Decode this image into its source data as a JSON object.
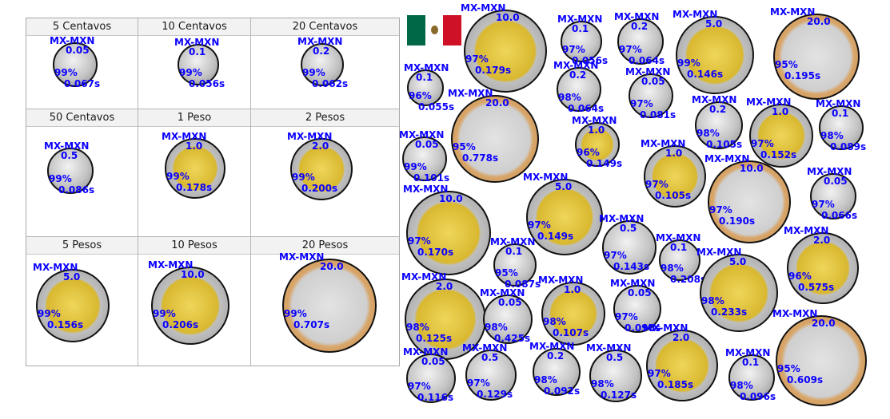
{
  "colors": {
    "label": "#0a00ff",
    "flag_green": "#006847",
    "flag_white": "#ffffff",
    "flag_red": "#ce1126"
  },
  "reference_table": {
    "cells": [
      {
        "header": "5 Centavos",
        "det": {
          "cls": "MX-MXN",
          "val": "0.05",
          "conf": "99%",
          "time": "0.067s"
        }
      },
      {
        "header": "10 Centavos",
        "det": {
          "cls": "MX-MXN",
          "val": "0.1",
          "conf": "99%",
          "time": "0.056s"
        }
      },
      {
        "header": "20 Centavos",
        "det": {
          "cls": "MX-MXN",
          "val": "0.2",
          "conf": "99%",
          "time": "0.062s"
        }
      },
      {
        "header": "50 Centavos",
        "det": {
          "cls": "MX-MXN",
          "val": "0.5",
          "conf": "99%",
          "time": "0.086s"
        }
      },
      {
        "header": "1 Peso",
        "det": {
          "cls": "MX-MXN",
          "val": "1.0",
          "conf": "99%",
          "time": "0.178s"
        }
      },
      {
        "header": "2 Pesos",
        "det": {
          "cls": "MX-MXN",
          "val": "2.0",
          "conf": "99%",
          "time": "0.200s"
        }
      },
      {
        "header": "5 Pesos",
        "det": {
          "cls": "MX-MXN",
          "val": "5.0",
          "conf": "99%",
          "time": "0.156s"
        }
      },
      {
        "header": "10 Pesos",
        "det": {
          "cls": "MX-MXN",
          "val": "10.0",
          "conf": "99%",
          "time": "0.206s"
        }
      },
      {
        "header": "20 Pesos",
        "det": {
          "cls": "MX-MXN",
          "val": "20.0",
          "conf": "99%",
          "time": "0.707s"
        }
      }
    ]
  },
  "scene_detections": [
    {
      "cls": "MX-MXN",
      "val": "10.0",
      "conf": "97%",
      "time": "0.179s"
    },
    {
      "cls": "MX-MXN",
      "val": "0.1",
      "conf": "97%",
      "time": "0.056s"
    },
    {
      "cls": "MX-MXN",
      "val": "0.2",
      "conf": "97%",
      "time": "0.064s"
    },
    {
      "cls": "MX-MXN",
      "val": "5.0",
      "conf": "99%",
      "time": "0.146s"
    },
    {
      "cls": "MX-MXN",
      "val": "20.0",
      "conf": "95%",
      "time": "0.195s"
    },
    {
      "cls": "MX-MXN",
      "val": "0.1",
      "conf": "96%",
      "time": "0.055s"
    },
    {
      "cls": "MX-MXN",
      "val": "0.2",
      "conf": "98%",
      "time": "0.064s"
    },
    {
      "cls": "MX-MXN",
      "val": "0.05",
      "conf": "97%",
      "time": "0.081s"
    },
    {
      "cls": "MX-MXN",
      "val": "0.2",
      "conf": "98%",
      "time": "0.105s"
    },
    {
      "cls": "MX-MXN",
      "val": "1.0",
      "conf": "97%",
      "time": "0.152s"
    },
    {
      "cls": "MX-MXN",
      "val": "0.1",
      "conf": "98%",
      "time": "0.089s"
    },
    {
      "cls": "MX-MXN",
      "val": "20.0",
      "conf": "95%",
      "time": "0.778s"
    },
    {
      "cls": "MX-MXN",
      "val": "1.0",
      "conf": "96%",
      "time": "0.149s"
    },
    {
      "cls": "MX-MXN",
      "val": "0.05",
      "conf": "99%",
      "time": "0.101s"
    },
    {
      "cls": "MX-MXN",
      "val": "1.0",
      "conf": "97%",
      "time": "0.105s"
    },
    {
      "cls": "MX-MXN",
      "val": "10.0",
      "conf": "97%",
      "time": "0.190s"
    },
    {
      "cls": "MX-MXN",
      "val": "0.05",
      "conf": "97%",
      "time": "0.066s"
    },
    {
      "cls": "MX-MXN",
      "val": "10.0",
      "conf": "97%",
      "time": "0.170s"
    },
    {
      "cls": "MX-MXN",
      "val": "5.0",
      "conf": "97%",
      "time": "0.149s"
    },
    {
      "cls": "MX-MXN",
      "val": "0.5",
      "conf": "97%",
      "time": "0.143s"
    },
    {
      "cls": "MX-MXN",
      "val": "0.1",
      "conf": "98%",
      "time": "0.208s"
    },
    {
      "cls": "MX-MXN",
      "val": "2.0",
      "conf": "96%",
      "time": "0.575s"
    },
    {
      "cls": "MX-MXN",
      "val": "0.1",
      "conf": "95%",
      "time": "0.087s"
    },
    {
      "cls": "MX-MXN",
      "val": "5.0",
      "conf": "98%",
      "time": "0.233s"
    },
    {
      "cls": "MX-MXN",
      "val": "2.0",
      "conf": "98%",
      "time": "0.125s"
    },
    {
      "cls": "MX-MXN",
      "val": "0.05",
      "conf": "98%",
      "time": "0.425s"
    },
    {
      "cls": "MX-MXN",
      "val": "1.0",
      "conf": "98%",
      "time": "0.107s"
    },
    {
      "cls": "MX-MXN",
      "val": "0.05",
      "conf": "97%",
      "time": "0.090s"
    },
    {
      "cls": "MX-MXN",
      "val": "20.0",
      "conf": "95%",
      "time": "0.609s"
    },
    {
      "cls": "MX-MXN",
      "val": "0.05",
      "conf": "97%",
      "time": "0.116s"
    },
    {
      "cls": "MX-MXN",
      "val": "0.5",
      "conf": "97%",
      "time": "0.129s"
    },
    {
      "cls": "MX-MXN",
      "val": "0.2",
      "conf": "98%",
      "time": "0.092s"
    },
    {
      "cls": "MX-MXN",
      "val": "0.5",
      "conf": "98%",
      "time": "0.127s"
    },
    {
      "cls": "MX-MXN",
      "val": "2.0",
      "conf": "97%",
      "time": "0.185s"
    },
    {
      "cls": "MX-MXN",
      "val": "0.1",
      "conf": "98%",
      "time": "0.096s"
    }
  ]
}
